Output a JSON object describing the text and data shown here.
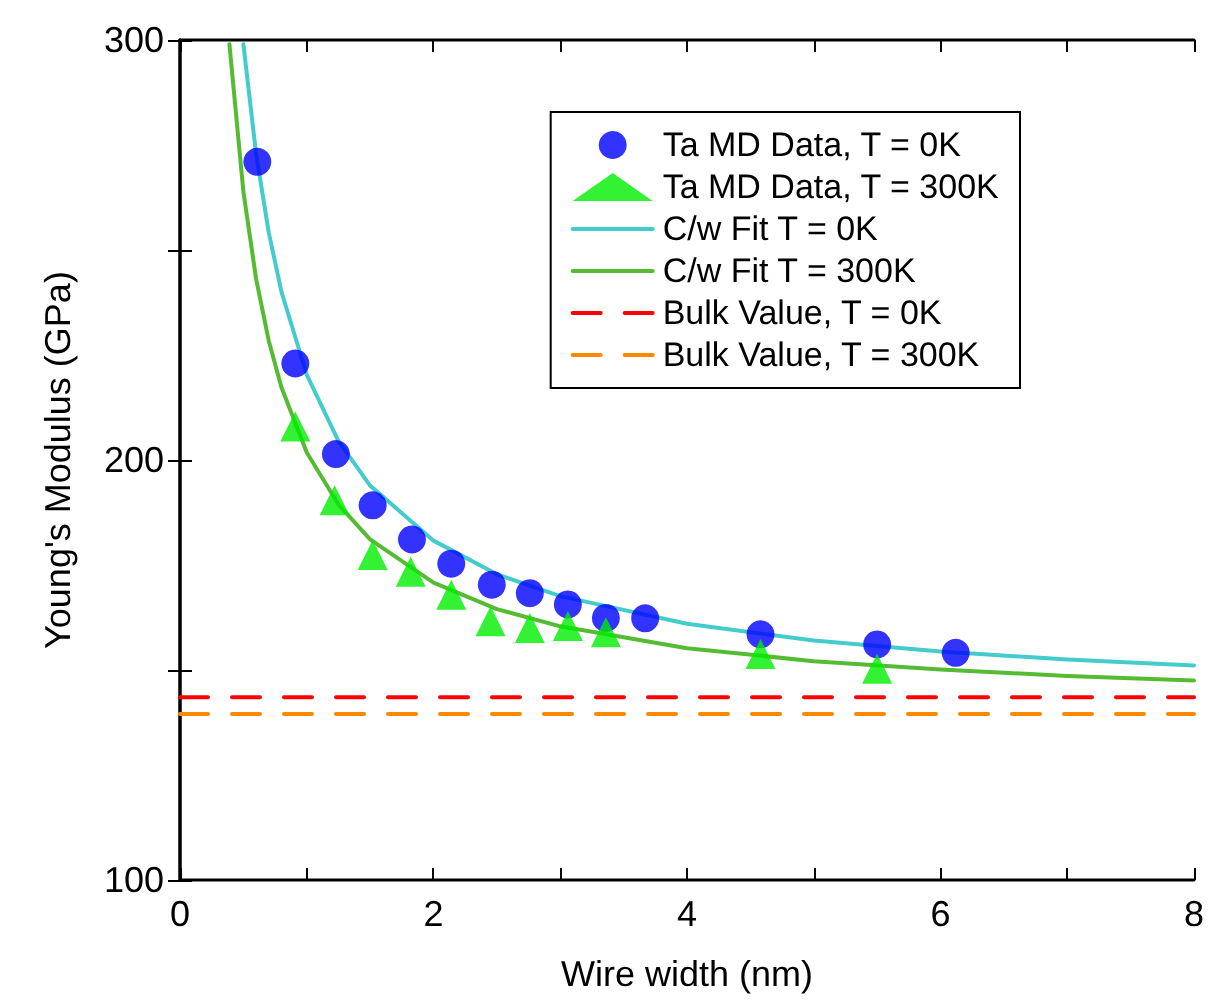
{
  "chart_data": {
    "type": "scatter",
    "xlabel": "Wire width (nm)",
    "ylabel": "Young's Modulus (GPa)",
    "xlim": [
      0,
      8
    ],
    "xticks": [
      0,
      {
        "value": 1,
        "label": null
      },
      2,
      {
        "value": 3,
        "label": null
      },
      4,
      {
        "value": 5,
        "label": null
      },
      6,
      {
        "value": 7,
        "label": null
      },
      8
    ],
    "ylim": [
      100,
      300
    ],
    "yticks": [
      100,
      {
        "value": 150,
        "label": null
      },
      200,
      {
        "value": 250,
        "label": null
      },
      300
    ],
    "grid": false,
    "legend": "top right",
    "series": [
      {
        "name": "Ta MD Data, T = 0K",
        "marker": "circle",
        "color": "#0000ff",
        "x": [
          0.61,
          0.91,
          1.23,
          1.52,
          1.83,
          2.14,
          2.46,
          2.76,
          3.06,
          3.36,
          3.67,
          4.58,
          5.5,
          6.12
        ],
        "values": [
          271,
          223,
          201.4,
          189.2,
          181.1,
          175.3,
          170.3,
          168.3,
          165.6,
          162.4,
          162.3,
          158.5,
          156.1,
          154.1
        ]
      },
      {
        "name": "Ta MD Data, T = 300K",
        "marker": "triangle",
        "color": "#00ee00",
        "x": [
          0.91,
          1.22,
          1.52,
          1.82,
          2.14,
          2.45,
          2.76,
          3.06,
          3.36,
          4.58,
          5.5
        ],
        "values": [
          208,
          190.4,
          177.4,
          173.4,
          167.9,
          161.6,
          160,
          160.5,
          159,
          153.8,
          150.3
        ]
      },
      {
        "name": "C/w Fit T = 0K",
        "type": "line",
        "marker": "none",
        "line_style": "solid",
        "color": "#44cccc",
        "x": [
          0.5,
          0.6,
          0.7,
          0.8,
          1,
          1.25,
          1.5,
          2,
          2.5,
          3,
          4,
          5,
          6,
          7,
          8
        ],
        "values": [
          299,
          273,
          254.2,
          240.1,
          220.3,
          204.5,
          193.9,
          180.8,
          172.8,
          167.6,
          161,
          157,
          154.4,
          152.5,
          151.1
        ]
      },
      {
        "name": "C/w Fit T = 300K",
        "type": "line",
        "marker": "none",
        "line_style": "solid",
        "color": "#55bb33",
        "x": [
          0.39,
          0.5,
          0.6,
          0.7,
          0.8,
          1,
          1.25,
          1.5,
          2,
          2.5,
          3,
          4,
          5,
          6,
          7,
          8
        ],
        "values": [
          299,
          263.9,
          243.2,
          228.4,
          217.3,
          201.8,
          189.4,
          181.1,
          170.8,
          164.5,
          160.4,
          155.2,
          152.1,
          150.1,
          148.6,
          147.5
        ]
      },
      {
        "name": "Bulk Value, T = 0K",
        "type": "line",
        "marker": "none",
        "line_style": "dashed",
        "color": "#ff0000",
        "x": [
          0,
          8
        ],
        "values": [
          143.5,
          143.5
        ]
      },
      {
        "name": "Bulk Value, T = 300K",
        "type": "line",
        "marker": "none",
        "line_style": "dashed",
        "color": "#ff8800",
        "x": [
          0,
          8
        ],
        "values": [
          139.5,
          139.5
        ]
      }
    ]
  }
}
